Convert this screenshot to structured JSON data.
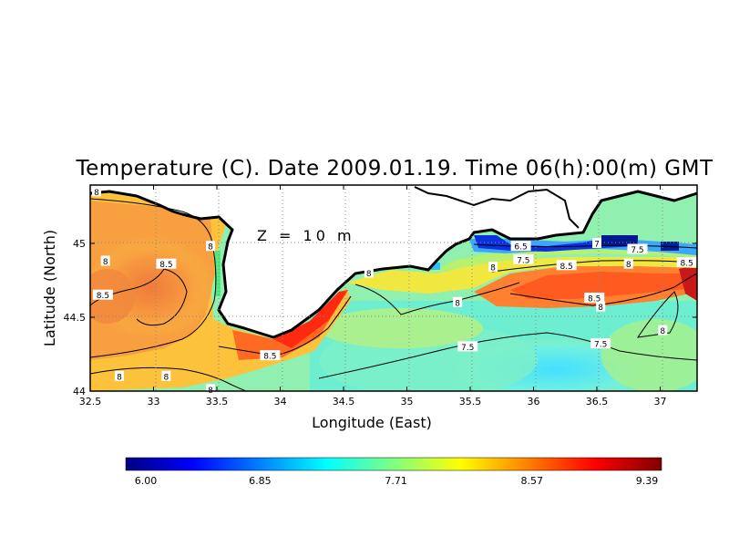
{
  "chart_data": {
    "type": "heatmap",
    "title": "Temperature (C). Date 2009.01.19. Time 06(h):00(m) GMT",
    "annotation": "Z = 10 m",
    "xlabel": "Longitude (East)",
    "ylabel": "Latitude (North)",
    "xlim": [
      32.5,
      37.3
    ],
    "ylim": [
      43.98,
      45.38
    ],
    "x_ticks": [
      32.5,
      33,
      33.5,
      34,
      34.5,
      35,
      35.5,
      36,
      36.5,
      37
    ],
    "y_ticks": [
      44,
      44.5,
      45
    ],
    "x_tick_labels": [
      "32.5",
      "33",
      "33.5",
      "34",
      "34.5",
      "35",
      "35.5",
      "36",
      "36.5",
      "37"
    ],
    "y_tick_labels": [
      "44",
      "44.5",
      "45"
    ],
    "grid": true,
    "colorbar": {
      "min": 6.0,
      "max": 9.39,
      "tick_values": [
        6.0,
        6.85,
        7.71,
        8.57,
        9.39
      ],
      "tick_labels": [
        "6.00",
        "6.85",
        "7.71",
        "8.57",
        "9.39"
      ],
      "colors": [
        "#000080",
        "#0000ff",
        "#0080ff",
        "#00ffff",
        "#80ff80",
        "#ffff00",
        "#ff8000",
        "#ff0000",
        "#800000"
      ]
    },
    "contour_labels": [
      {
        "text": "8",
        "lon": 32.55,
        "lat": 45.35
      },
      {
        "text": "8",
        "lon": 32.62,
        "lat": 44.88
      },
      {
        "text": "8.5",
        "lon": 32.6,
        "lat": 44.65
      },
      {
        "text": "8.5",
        "lon": 33.1,
        "lat": 44.86
      },
      {
        "text": "8",
        "lon": 33.45,
        "lat": 44.98
      },
      {
        "text": "8",
        "lon": 32.73,
        "lat": 44.1
      },
      {
        "text": "8",
        "lon": 33.1,
        "lat": 44.1
      },
      {
        "text": "8",
        "lon": 33.45,
        "lat": 44.01
      },
      {
        "text": "8.5",
        "lon": 33.92,
        "lat": 44.24
      },
      {
        "text": "8",
        "lon": 34.7,
        "lat": 44.8
      },
      {
        "text": "8",
        "lon": 35.4,
        "lat": 44.6
      },
      {
        "text": "6.5",
        "lon": 35.9,
        "lat": 44.98
      },
      {
        "text": "7",
        "lon": 36.5,
        "lat": 45.0
      },
      {
        "text": "7.5",
        "lon": 36.82,
        "lat": 44.96
      },
      {
        "text": "7.5",
        "lon": 35.92,
        "lat": 44.89
      },
      {
        "text": "8",
        "lon": 35.68,
        "lat": 44.84
      },
      {
        "text": "8.5",
        "lon": 36.26,
        "lat": 44.85
      },
      {
        "text": "8",
        "lon": 36.75,
        "lat": 44.86
      },
      {
        "text": "8.5",
        "lon": 37.21,
        "lat": 44.87
      },
      {
        "text": "8.5",
        "lon": 36.48,
        "lat": 44.63
      },
      {
        "text": "8",
        "lon": 36.53,
        "lat": 44.57
      },
      {
        "text": "7.5",
        "lon": 35.48,
        "lat": 44.3
      },
      {
        "text": "7.5",
        "lon": 36.53,
        "lat": 44.32
      },
      {
        "text": "8",
        "lon": 37.02,
        "lat": 44.41
      }
    ]
  }
}
